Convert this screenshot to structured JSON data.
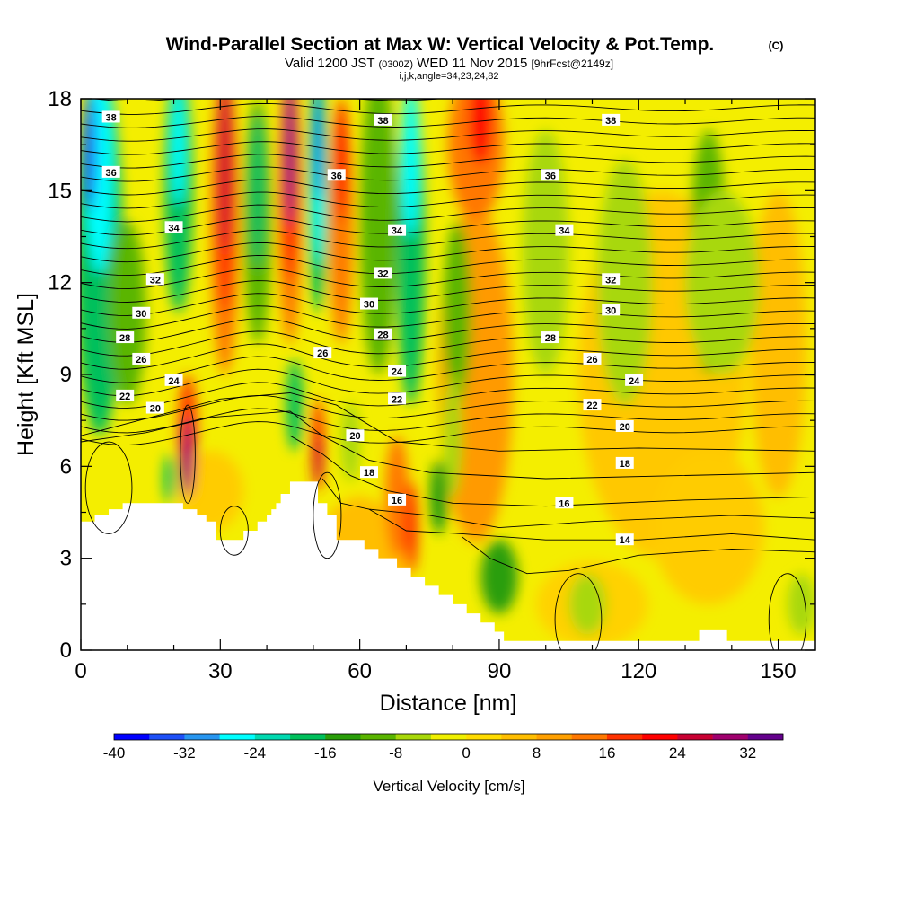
{
  "header": {
    "title": "Wind-Parallel Section at Max W: Vertical Velocity & Pot.Temp.",
    "copyright": "(C)",
    "valid_prefix": "Valid 1200 JST",
    "valid_utc": "(0300Z)",
    "valid_date": "WED 11 Nov 2015",
    "forecast": "[9hrFcst@2149z]",
    "indices": "i,j,k,angle=34,23,24,82"
  },
  "chart_data": {
    "type": "heatmap",
    "xlabel": "Distance [nm]",
    "ylabel": "Height [Kft MSL]",
    "xlim": [
      0,
      158
    ],
    "ylim": [
      0,
      18
    ],
    "xticks": [
      0,
      30,
      60,
      90,
      120,
      150
    ],
    "yticks": [
      0,
      3,
      6,
      9,
      12,
      15,
      18
    ],
    "colorbar": {
      "label": "Vertical Velocity [cm/s]",
      "ticks": [
        -40,
        -32,
        -24,
        -16,
        -8,
        0,
        8,
        16,
        24,
        32
      ],
      "range": [
        -40,
        36
      ],
      "colors": [
        "#0000ff",
        "#1e50f8",
        "#2896f0",
        "#00ffff",
        "#00d9b0",
        "#00c05c",
        "#2a9e0a",
        "#5ab500",
        "#a8d80a",
        "#f0f000",
        "#ffdc00",
        "#ffbe00",
        "#ffa000",
        "#ff7800",
        "#ff3200",
        "#ff0000",
        "#c80032",
        "#a0006e",
        "#64008c"
      ]
    },
    "terrain_kft": [
      [
        0,
        4.2
      ],
      [
        3,
        4.2
      ],
      [
        3,
        4.4
      ],
      [
        6,
        4.4
      ],
      [
        6,
        4.6
      ],
      [
        9,
        4.6
      ],
      [
        9,
        4.8
      ],
      [
        22,
        4.8
      ],
      [
        22,
        4.6
      ],
      [
        25,
        4.6
      ],
      [
        25,
        4.4
      ],
      [
        27,
        4.4
      ],
      [
        27,
        4.2
      ],
      [
        29,
        4.2
      ],
      [
        29,
        3.6
      ],
      [
        35,
        3.6
      ],
      [
        35,
        3.9
      ],
      [
        38,
        3.9
      ],
      [
        38,
        4.2
      ],
      [
        40,
        4.2
      ],
      [
        40,
        4.4
      ],
      [
        41,
        4.4
      ],
      [
        41,
        4.6
      ],
      [
        42,
        4.6
      ],
      [
        42,
        4.8
      ],
      [
        43,
        4.8
      ],
      [
        43,
        5.1
      ],
      [
        45,
        5.1
      ],
      [
        45,
        5.5
      ],
      [
        51,
        5.5
      ],
      [
        51,
        4.8
      ],
      [
        53,
        4.8
      ],
      [
        53,
        4.4
      ],
      [
        55,
        4.4
      ],
      [
        55,
        3.6
      ],
      [
        61,
        3.6
      ],
      [
        61,
        3.3
      ],
      [
        64,
        3.3
      ],
      [
        64,
        3.0
      ],
      [
        68,
        3.0
      ],
      [
        68,
        2.7
      ],
      [
        71,
        2.7
      ],
      [
        71,
        2.4
      ],
      [
        74,
        2.4
      ],
      [
        74,
        2.1
      ],
      [
        77,
        2.1
      ],
      [
        77,
        1.8
      ],
      [
        80,
        1.8
      ],
      [
        80,
        1.5
      ],
      [
        83,
        1.5
      ],
      [
        83,
        1.2
      ],
      [
        86,
        1.2
      ],
      [
        86,
        0.9
      ],
      [
        89,
        0.9
      ],
      [
        89,
        0.6
      ],
      [
        91,
        0.6
      ],
      [
        91,
        0.3
      ],
      [
        133,
        0.3
      ],
      [
        133,
        0.65
      ],
      [
        139,
        0.65
      ],
      [
        139,
        0.3
      ],
      [
        158,
        0.3
      ]
    ],
    "theta_labels": [
      {
        "text": "38",
        "x": 6.5,
        "y": 17.4
      },
      {
        "text": "38",
        "x": 65,
        "y": 17.3
      },
      {
        "text": "38",
        "x": 114,
        "y": 17.3
      },
      {
        "text": "36",
        "x": 6.5,
        "y": 15.6
      },
      {
        "text": "36",
        "x": 55,
        "y": 15.5
      },
      {
        "text": "36",
        "x": 101,
        "y": 15.5
      },
      {
        "text": "34",
        "x": 20,
        "y": 13.8
      },
      {
        "text": "34",
        "x": 68,
        "y": 13.7
      },
      {
        "text": "34",
        "x": 104,
        "y": 13.7
      },
      {
        "text": "32",
        "x": 16,
        "y": 12.1
      },
      {
        "text": "32",
        "x": 65,
        "y": 12.3
      },
      {
        "text": "32",
        "x": 114,
        "y": 12.1
      },
      {
        "text": "30",
        "x": 13,
        "y": 11.0
      },
      {
        "text": "30",
        "x": 62,
        "y": 11.3
      },
      {
        "text": "30",
        "x": 114,
        "y": 11.1
      },
      {
        "text": "28",
        "x": 9.5,
        "y": 10.2
      },
      {
        "text": "28",
        "x": 65,
        "y": 10.3
      },
      {
        "text": "28",
        "x": 101,
        "y": 10.2
      },
      {
        "text": "26",
        "x": 13,
        "y": 9.5
      },
      {
        "text": "26",
        "x": 52,
        "y": 9.7
      },
      {
        "text": "26",
        "x": 110,
        "y": 9.5
      },
      {
        "text": "24",
        "x": 20,
        "y": 8.8
      },
      {
        "text": "24",
        "x": 68,
        "y": 9.1
      },
      {
        "text": "24",
        "x": 119,
        "y": 8.8
      },
      {
        "text": "22",
        "x": 9.5,
        "y": 8.3
      },
      {
        "text": "22",
        "x": 68,
        "y": 8.2
      },
      {
        "text": "22",
        "x": 110,
        "y": 8.0
      },
      {
        "text": "20",
        "x": 16,
        "y": 7.9
      },
      {
        "text": "20",
        "x": 59,
        "y": 7.0
      },
      {
        "text": "20",
        "x": 117,
        "y": 7.3
      },
      {
        "text": "18",
        "x": 62,
        "y": 5.8
      },
      {
        "text": "18",
        "x": 117,
        "y": 6.1
      },
      {
        "text": "16",
        "x": 68,
        "y": 4.9
      },
      {
        "text": "16",
        "x": 104,
        "y": 4.8
      },
      {
        "text": "14",
        "x": 117,
        "y": 3.6
      }
    ]
  }
}
